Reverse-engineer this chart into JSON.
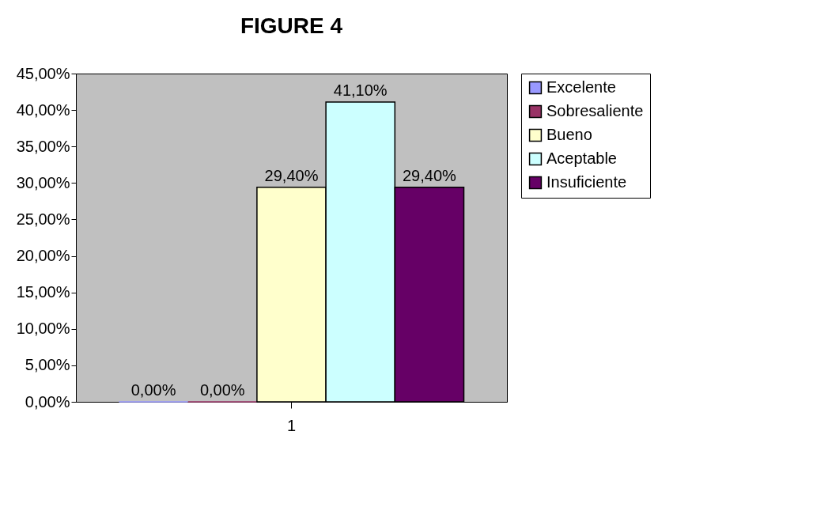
{
  "chart_data": {
    "type": "bar",
    "title": "FIGURE 4",
    "categories": [
      "1"
    ],
    "series": [
      {
        "name": "Excelente",
        "color": "#9999ff",
        "values": [
          0
        ],
        "value_labels": [
          "0,00%"
        ]
      },
      {
        "name": "Sobresaliente",
        "color": "#993366",
        "values": [
          0
        ],
        "value_labels": [
          "0,00%"
        ]
      },
      {
        "name": "Bueno",
        "color": "#ffffcc",
        "values": [
          29.4
        ],
        "value_labels": [
          "29,40%"
        ]
      },
      {
        "name": "Aceptable",
        "color": "#ccffff",
        "values": [
          41.1
        ],
        "value_labels": [
          "41,10%"
        ]
      },
      {
        "name": "Insuficiente",
        "color": "#660066",
        "values": [
          29.4
        ],
        "value_labels": [
          "29,40%"
        ]
      }
    ],
    "ylim": [
      0,
      45
    ],
    "yticks": [
      {
        "value": 0,
        "label": "0,00%"
      },
      {
        "value": 5,
        "label": "5,00%"
      },
      {
        "value": 10,
        "label": "10,00%"
      },
      {
        "value": 15,
        "label": "15,00%"
      },
      {
        "value": 20,
        "label": "20,00%"
      },
      {
        "value": 25,
        "label": "25,00%"
      },
      {
        "value": 30,
        "label": "30,00%"
      },
      {
        "value": 35,
        "label": "35,00%"
      },
      {
        "value": 40,
        "label": "40,00%"
      },
      {
        "value": 45,
        "label": "45,00%"
      }
    ],
    "grid": false,
    "legend": "right"
  }
}
